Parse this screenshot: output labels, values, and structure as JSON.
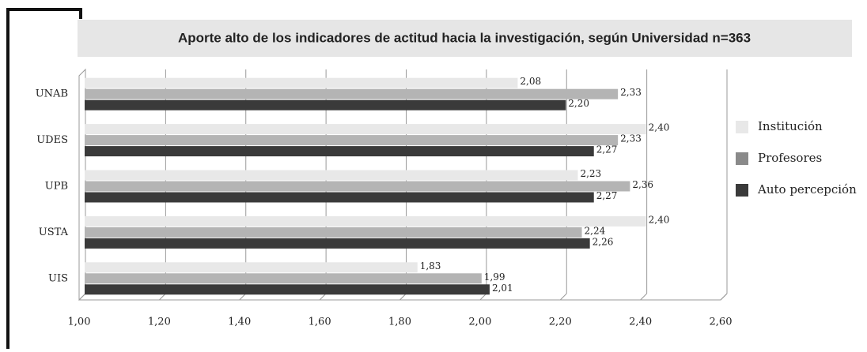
{
  "chart_data": {
    "type": "bar",
    "orientation": "horizontal",
    "title": "Aporte alto de los indicadores de actitud hacia la investigación,  según Universidad  n=363",
    "categories": [
      "UNAB",
      "UDES",
      "UPB",
      "USTA",
      "UIS"
    ],
    "series": [
      {
        "name": "Institución",
        "color": "#e8e8e8",
        "values": [
          2.08,
          2.4,
          2.23,
          2.4,
          1.83
        ],
        "value_labels": [
          "2,08",
          "2,40",
          "2,23",
          "2,40",
          "1,83"
        ]
      },
      {
        "name": "Profesores",
        "color": "#b4b4b4",
        "values": [
          2.33,
          2.33,
          2.36,
          2.24,
          1.99
        ],
        "value_labels": [
          "2,33",
          "2,33",
          "2,36",
          "2,24",
          "1,99"
        ]
      },
      {
        "name": "Auto percepción",
        "color": "#3a3a3a",
        "values": [
          2.2,
          2.27,
          2.27,
          2.26,
          2.01
        ],
        "value_labels": [
          "2,20",
          "2,27",
          "2,27",
          "2,26",
          "2,01"
        ]
      }
    ],
    "xlim": [
      1.0,
      2.6
    ],
    "xticks": [
      {
        "value": 1.0,
        "label": "1,00"
      },
      {
        "value": 1.2,
        "label": "1,20"
      },
      {
        "value": 1.4,
        "label": "1,40"
      },
      {
        "value": 1.6,
        "label": "1,60"
      },
      {
        "value": 1.8,
        "label": "1,80"
      },
      {
        "value": 2.0,
        "label": "2,00"
      },
      {
        "value": 2.2,
        "label": "2,20"
      },
      {
        "value": 2.4,
        "label": "2,40"
      },
      {
        "value": 2.6,
        "label": "2,60"
      }
    ],
    "grid": true,
    "legend": "right"
  }
}
